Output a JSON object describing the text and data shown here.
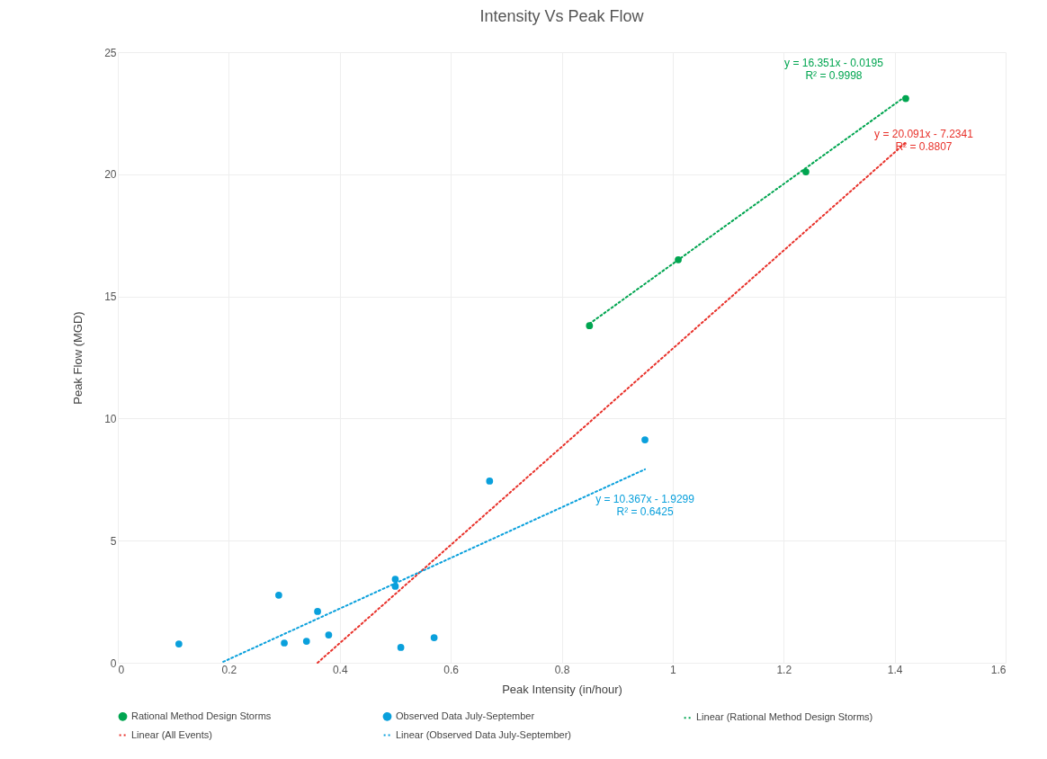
{
  "chart_data": {
    "type": "scatter",
    "title": "Intensity Vs Peak Flow",
    "xlabel": "Peak Intensity (in/hour)",
    "ylabel": "Peak Flow (MGD)",
    "xlim": [
      0,
      1.6
    ],
    "xticks": [
      0,
      0.2,
      0.4,
      0.6,
      0.8,
      1,
      1.2,
      1.4,
      1.6
    ],
    "ylim": [
      0,
      25
    ],
    "yticks": [
      0,
      5,
      10,
      15,
      20,
      25
    ],
    "grid": true,
    "legend": "bottom",
    "series": [
      {
        "name": "Rational Method Design Storms",
        "color": "#00a550",
        "marker": "circle",
        "x": [
          0.85,
          1.01,
          1.24,
          1.42
        ],
        "values": [
          13.8,
          16.5,
          20.1,
          23.1
        ]
      },
      {
        "name": "Observed Data July-September",
        "color": "#0aa0dc",
        "marker": "circle",
        "x": [
          0.11,
          0.29,
          0.3,
          0.34,
          0.36,
          0.38,
          0.5,
          0.5,
          0.51,
          0.57,
          0.67,
          0.95
        ],
        "values": [
          0.77,
          2.77,
          0.81,
          0.88,
          2.1,
          1.14,
          3.42,
          3.13,
          0.63,
          1.03,
          7.44,
          9.13
        ]
      },
      {
        "name": "Linear (Rational Method Design Storms)",
        "color": "#00a550",
        "type": "line",
        "marker": "none",
        "line_style": "dotted",
        "x": [
          0.85,
          1.42
        ],
        "values": [
          13.88,
          23.2
        ]
      },
      {
        "name": "Linear (All Events)",
        "color": "#e8312a",
        "type": "line",
        "marker": "none",
        "line_style": "dotted",
        "x": [
          0.36,
          1.42
        ],
        "values": [
          0,
          21.3
        ]
      },
      {
        "name": "Linear (Observed Data July-September)",
        "color": "#0aa0dc",
        "type": "line",
        "marker": "none",
        "line_style": "dotted",
        "x": [
          0.19,
          0.95
        ],
        "values": [
          0.04,
          7.92
        ]
      }
    ],
    "annotations": [
      "y = 16.351x - 0.0195\nR² = 0.9998",
      "y = 20.091x - 7.2341\nR² = 0.8807",
      "y = 10.367x - 1.9299\nR² = 0.6425"
    ]
  }
}
